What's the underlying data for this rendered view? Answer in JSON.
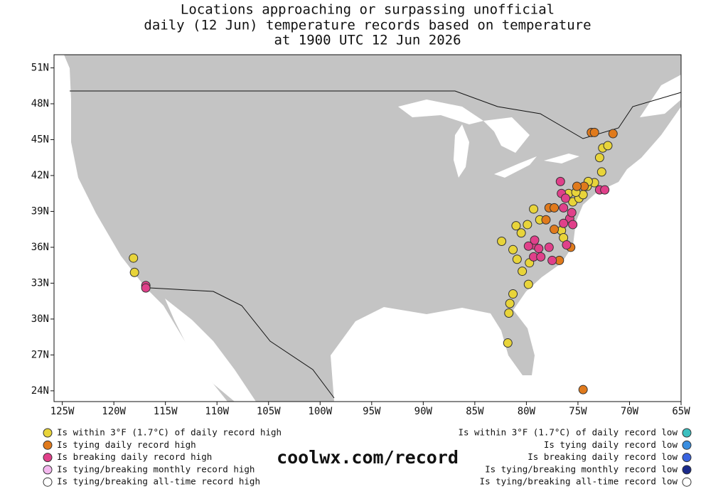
{
  "chart_data": {
    "type": "map-scatter",
    "title": [
      "Locations approaching or surpassing unofficial",
      "daily (12 Jun) temperature records based on temperature",
      "at 1900 UTC 12 Jun 2026"
    ],
    "source": "coolwx.com/record",
    "xlim": [
      -125.8,
      -65
    ],
    "ylim": [
      23.1,
      52.1
    ],
    "xticks": [
      {
        "value": -125,
        "label": "125W"
      },
      {
        "value": -120,
        "label": "120W"
      },
      {
        "value": -115,
        "label": "115W"
      },
      {
        "value": -110,
        "label": "110W"
      },
      {
        "value": -105,
        "label": "105W"
      },
      {
        "value": -100,
        "label": "100W"
      },
      {
        "value": -95,
        "label": "95W"
      },
      {
        "value": -90,
        "label": "90W"
      },
      {
        "value": -85,
        "label": "85W"
      },
      {
        "value": -80,
        "label": "80W"
      },
      {
        "value": -75,
        "label": "75W"
      },
      {
        "value": -70,
        "label": "70W"
      },
      {
        "value": -65,
        "label": "65W"
      }
    ],
    "yticks": [
      {
        "value": 24,
        "label": "24N"
      },
      {
        "value": 27,
        "label": "27N"
      },
      {
        "value": 30,
        "label": "30N"
      },
      {
        "value": 33,
        "label": "33N"
      },
      {
        "value": 36,
        "label": "36N"
      },
      {
        "value": 39,
        "label": "39N"
      },
      {
        "value": 42,
        "label": "42N"
      },
      {
        "value": 45,
        "label": "45N"
      },
      {
        "value": 48,
        "label": "48N"
      },
      {
        "value": 51,
        "label": "51N"
      }
    ],
    "series": [
      {
        "name": "Is within 3°F (1.7°C) of daily record high",
        "color": "#e8d43a",
        "legend": "left",
        "x": [
          -118.1,
          -118.0,
          -82.4,
          -81.0,
          -80.5,
          -79.9,
          -81.3,
          -80.9,
          -80.4,
          -79.8,
          -81.3,
          -81.6,
          -81.7,
          -81.8,
          -79.3,
          -78.7,
          -76.6,
          -76.4,
          -75.9,
          -75.5,
          -74.9,
          -74.5,
          -74.1,
          -73.4,
          -72.7,
          -72.9,
          -72.6,
          -72.1,
          -74.0,
          -75.2,
          -79.7
        ],
        "y": [
          35.1,
          33.9,
          36.5,
          37.8,
          37.2,
          37.9,
          35.8,
          35.0,
          34.0,
          32.9,
          32.1,
          31.3,
          30.5,
          28.0,
          39.2,
          38.3,
          37.4,
          36.8,
          40.5,
          39.8,
          40.1,
          40.4,
          41.1,
          41.4,
          42.3,
          43.5,
          44.3,
          44.5,
          41.5,
          40.6,
          34.7
        ]
      },
      {
        "name": "Is tying daily record high",
        "color": "#e07a1c",
        "legend": "left",
        "x": [
          -73.7,
          -73.4,
          -71.6,
          -77.8,
          -77.3,
          -78.1,
          -77.3,
          -75.7,
          -76.8,
          -74.5,
          -74.4,
          -75.1
        ],
        "y": [
          45.6,
          45.6,
          45.5,
          39.3,
          39.3,
          38.3,
          37.5,
          36.0,
          34.9,
          24.1,
          41.1,
          41.1
        ]
      },
      {
        "name": "Is breaking daily record high",
        "color": "#e0408a",
        "legend": "left",
        "x": [
          -116.9,
          -116.9,
          -76.6,
          -76.4,
          -76.2,
          -75.8,
          -75.5,
          -76.4,
          -75.6,
          -76.1,
          -79.3,
          -79.8,
          -78.8,
          -77.8,
          -77.5,
          -79.3,
          -78.6,
          -79.2,
          -72.9,
          -72.4,
          -76.7
        ],
        "y": [
          32.8,
          32.6,
          40.5,
          39.3,
          40.1,
          38.4,
          37.9,
          38.0,
          38.9,
          36.2,
          36.2,
          36.1,
          35.9,
          36.0,
          34.9,
          35.2,
          35.2,
          36.6,
          40.8,
          40.8,
          41.5
        ]
      },
      {
        "name": "Is tying/breaking monthly record high",
        "color": "#f4b8ee",
        "legend": "left",
        "x": [],
        "y": []
      },
      {
        "name": "Is tying/breaking all-time record high",
        "color": "#ffffff",
        "legend": "left",
        "x": [],
        "y": []
      },
      {
        "name": "Is within 3°F (1.7°C) of daily record low",
        "color": "#3cc0c0",
        "legend": "right",
        "x": [],
        "y": []
      },
      {
        "name": "Is tying daily record low",
        "color": "#3a8ee0",
        "legend": "right",
        "x": [],
        "y": []
      },
      {
        "name": "Is breaking daily record low",
        "color": "#3a64e0",
        "legend": "right",
        "x": [],
        "y": []
      },
      {
        "name": "Is tying/breaking monthly record low",
        "color": "#1a2a8a",
        "legend": "right",
        "x": [],
        "y": []
      },
      {
        "name": "Is tying/breaking all-time record low",
        "color": "#ffffff",
        "legend": "right",
        "x": [],
        "y": []
      }
    ]
  }
}
